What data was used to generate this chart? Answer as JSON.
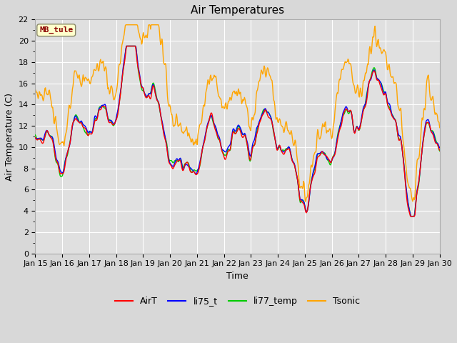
{
  "title": "Air Temperatures",
  "xlabel": "Time",
  "ylabel": "Air Temperature (C)",
  "ylim": [
    0,
    22
  ],
  "yticks": [
    0,
    2,
    4,
    6,
    8,
    10,
    12,
    14,
    16,
    18,
    20,
    22
  ],
  "date_labels": [
    "Jan 15",
    "Jan 16",
    "Jan 17",
    "Jan 18",
    "Jan 19",
    "Jan 20",
    "Jan 21",
    "Jan 22",
    "Jan 23",
    "Jan 24",
    "Jan 25",
    "Jan 26",
    "Jan 27",
    "Jan 28",
    "Jan 29",
    "Jan 30"
  ],
  "series_colors": {
    "AirT": "#ff0000",
    "li75_t": "#0000ff",
    "li77_temp": "#00cc00",
    "Tsonic": "#ffa500"
  },
  "annotation_text": "MB_tule",
  "annotation_color": "#8b0000",
  "annotation_bg": "#ffffcc",
  "fig_facecolor": "#d8d8d8",
  "ax_facecolor": "#e0e0e0",
  "grid_color": "#ffffff",
  "title_fontsize": 11,
  "label_fontsize": 9,
  "tick_fontsize": 8,
  "linewidth": 1.0
}
